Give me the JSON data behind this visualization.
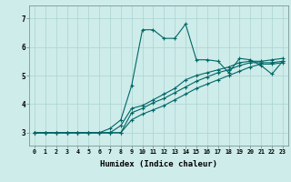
{
  "xlabel": "Humidex (Indice chaleur)",
  "bg_color": "#ceecea",
  "line_color": "#006666",
  "grid_color": "#aad4d0",
  "x_ticks": [
    0,
    1,
    2,
    3,
    4,
    5,
    6,
    7,
    8,
    9,
    10,
    11,
    12,
    13,
    14,
    15,
    16,
    17,
    18,
    19,
    20,
    21,
    22,
    23
  ],
  "y_ticks": [
    3,
    4,
    5,
    6,
    7
  ],
  "ylim": [
    2.55,
    7.45
  ],
  "xlim": [
    -0.5,
    23.5
  ],
  "series": [
    [
      3.0,
      3.0,
      3.0,
      3.0,
      3.0,
      3.0,
      3.0,
      3.15,
      3.45,
      4.65,
      6.6,
      6.6,
      6.3,
      6.3,
      6.8,
      5.55,
      5.55,
      5.5,
      5.1,
      5.6,
      5.55,
      5.35,
      5.05,
      5.5
    ],
    [
      3.0,
      3.0,
      3.0,
      3.0,
      3.0,
      3.0,
      3.0,
      3.0,
      3.25,
      3.85,
      3.95,
      4.15,
      4.35,
      4.55,
      4.85,
      5.0,
      5.1,
      5.2,
      5.3,
      5.45,
      5.5,
      5.5,
      5.55,
      5.6
    ],
    [
      3.0,
      3.0,
      3.0,
      3.0,
      3.0,
      3.0,
      3.0,
      3.0,
      3.0,
      3.7,
      3.85,
      4.05,
      4.2,
      4.4,
      4.6,
      4.8,
      4.95,
      5.1,
      5.2,
      5.35,
      5.45,
      5.45,
      5.45,
      5.5
    ],
    [
      3.0,
      3.0,
      3.0,
      3.0,
      3.0,
      3.0,
      3.0,
      3.0,
      3.0,
      3.45,
      3.65,
      3.8,
      3.95,
      4.15,
      4.35,
      4.55,
      4.7,
      4.85,
      5.0,
      5.15,
      5.3,
      5.4,
      5.4,
      5.45
    ]
  ]
}
